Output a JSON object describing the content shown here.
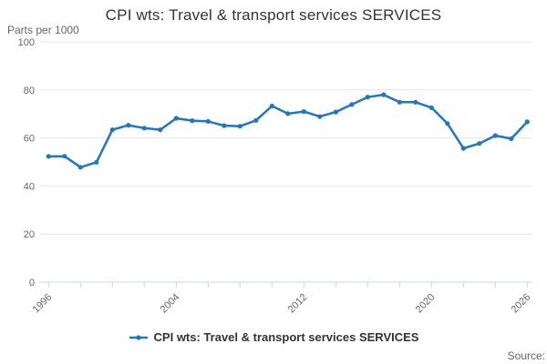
{
  "title": "CPI wts: Travel & transport services SERVICES",
  "y_axis_unit_label": "Parts per 1000",
  "legend": {
    "label": "CPI wts: Travel & transport services SERVICES"
  },
  "source_label": "Source:",
  "colors": {
    "line": "#1f78be",
    "grid": "#e6e6e6",
    "axis": "#ccd6eb",
    "tick_label": "#666666",
    "title_text": "#333333"
  },
  "chart_data": {
    "type": "line",
    "title": "CPI wts: Travel & transport services SERVICES",
    "ylabel": "Parts per 1000",
    "xlabel": "",
    "ylim": [
      0,
      100
    ],
    "y_ticks": [
      0,
      20,
      40,
      60,
      80,
      100
    ],
    "x_range": [
      1996,
      2026
    ],
    "x_tick_step": 2,
    "x_labeled_ticks": [
      1996,
      2004,
      2012,
      2020,
      2026
    ],
    "grid": true,
    "legend_position": "bottom",
    "marker": "circle",
    "x": [
      1996,
      1997,
      1998,
      1999,
      2000,
      2001,
      2002,
      2003,
      2004,
      2005,
      2006,
      2007,
      2008,
      2009,
      2010,
      2011,
      2012,
      2013,
      2014,
      2015,
      2016,
      2017,
      2018,
      2019,
      2020,
      2021,
      2022,
      2023,
      2024,
      2025,
      2026
    ],
    "series": [
      {
        "name": "CPI wts: Travel & transport services SERVICES",
        "values": [
          52.3,
          52.4,
          47.8,
          49.9,
          63.4,
          65.3,
          64.1,
          63.4,
          68.2,
          67.2,
          66.9,
          65.1,
          64.9,
          67.3,
          73.3,
          70.1,
          71.0,
          68.9,
          70.8,
          73.9,
          77.0,
          78.0,
          74.9,
          74.9,
          72.6,
          66.0,
          55.7,
          57.7,
          61.0,
          59.7,
          66.7
        ]
      }
    ]
  }
}
